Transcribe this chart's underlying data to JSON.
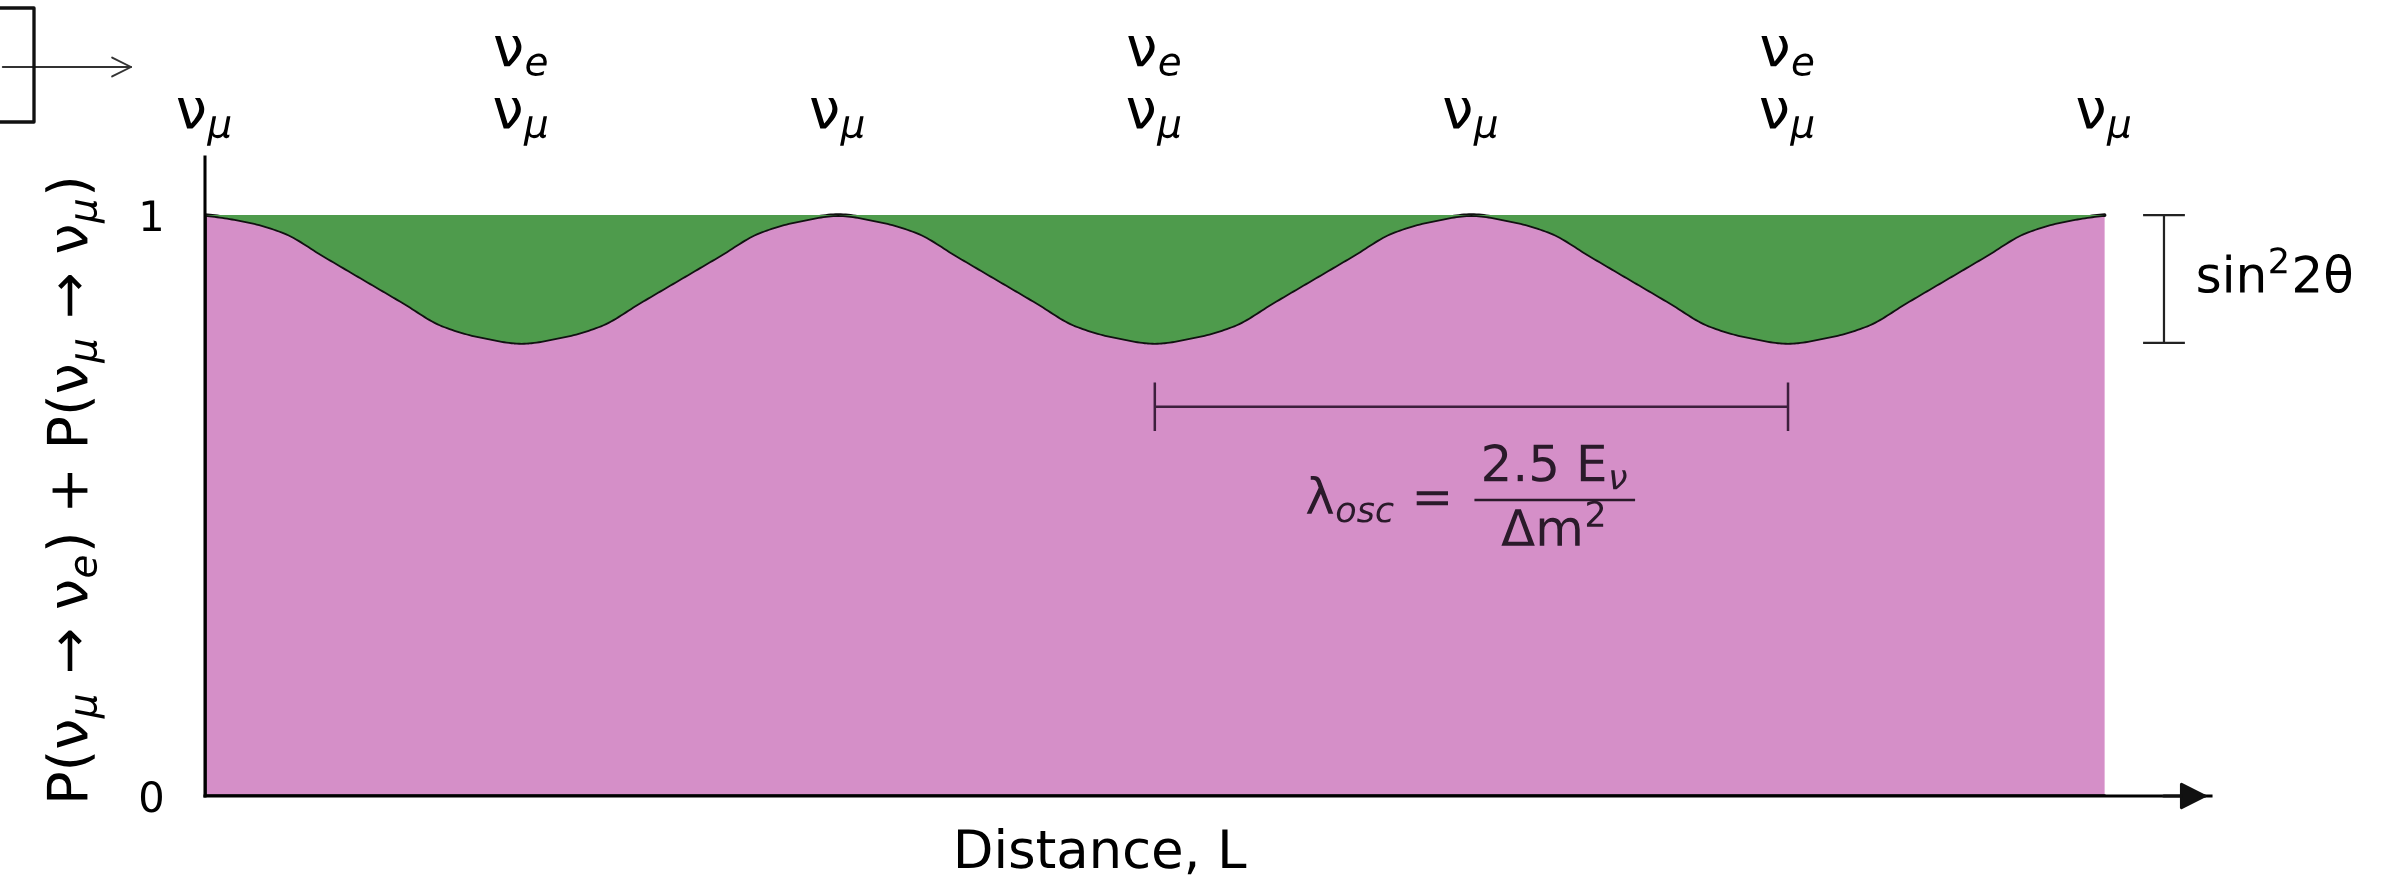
{
  "chart_data": {
    "type": "area",
    "stacked": true,
    "categories": [
      "ν$_{μ}$",
      null,
      null,
      null,
      null,
      null,
      null,
      null,
      "ν$_{e}$\nν$_{μ}$",
      null,
      null,
      null,
      null,
      null,
      null,
      null,
      "ν$_{μ}$",
      null,
      null,
      null,
      null,
      null,
      null,
      null,
      "ν$_{e}$\nν$_{μ}$",
      null,
      null,
      null,
      null,
      null,
      null,
      null,
      "ν$_{μ}$",
      null,
      null,
      null,
      null,
      null,
      null,
      null,
      "ν$_{e}$\nν$_{μ}$",
      null,
      null,
      null,
      null,
      null,
      null,
      null,
      "ν$_{μ}$"
    ],
    "series": [
      {
        "color": "#d58fc8",
        "values": [
          1,
          0.99,
          0.97,
          0.93,
          0.89,
          0.85,
          0.81,
          0.79,
          0.78,
          0.79,
          0.81,
          0.85,
          0.89,
          0.93,
          0.97,
          0.99,
          1,
          0.99,
          0.97,
          0.93,
          0.89,
          0.85,
          0.81,
          0.79,
          0.78,
          0.79,
          0.81,
          0.85,
          0.89,
          0.93,
          0.97,
          0.99,
          1,
          0.99,
          0.97,
          0.93,
          0.89,
          0.85,
          0.81,
          0.79,
          0.78,
          0.79,
          0.81,
          0.85,
          0.89,
          0.93,
          0.97,
          0.99,
          1
        ]
      },
      {
        "color": "#4e9b4c",
        "values": [
          0,
          0.01,
          0.03,
          0.07,
          0.11,
          0.15,
          0.19,
          0.21,
          0.22,
          0.21,
          0.19,
          0.15,
          0.11,
          0.07,
          0.03,
          0.01,
          0,
          0.01,
          0.03,
          0.07,
          0.11,
          0.15,
          0.19,
          0.21,
          0.22,
          0.21,
          0.19,
          0.15,
          0.11,
          0.07,
          0.03,
          0.01,
          0,
          0.01,
          0.03,
          0.07,
          0.11,
          0.15,
          0.19,
          0.21,
          0.22,
          0.21,
          0.19,
          0.15,
          0.11,
          0.07,
          0.03,
          0.01,
          0
        ]
      }
    ],
    "ylim": [
      0,
      1.1
    ],
    "yticks": [
      0,
      1
    ],
    "xlabel": "Distance, L",
    "ylabel": "P(ν$_{μ}$ → ν$_{e}$) + P(ν$_{μ}$ → ν$_{μ}$)",
    "annotations": [
      "sin$^{2}$2θ",
      "λ$_{osc}$ =",
      "2.5 E$_{ν}$",
      "Δm$^{2}$"
    ]
  }
}
